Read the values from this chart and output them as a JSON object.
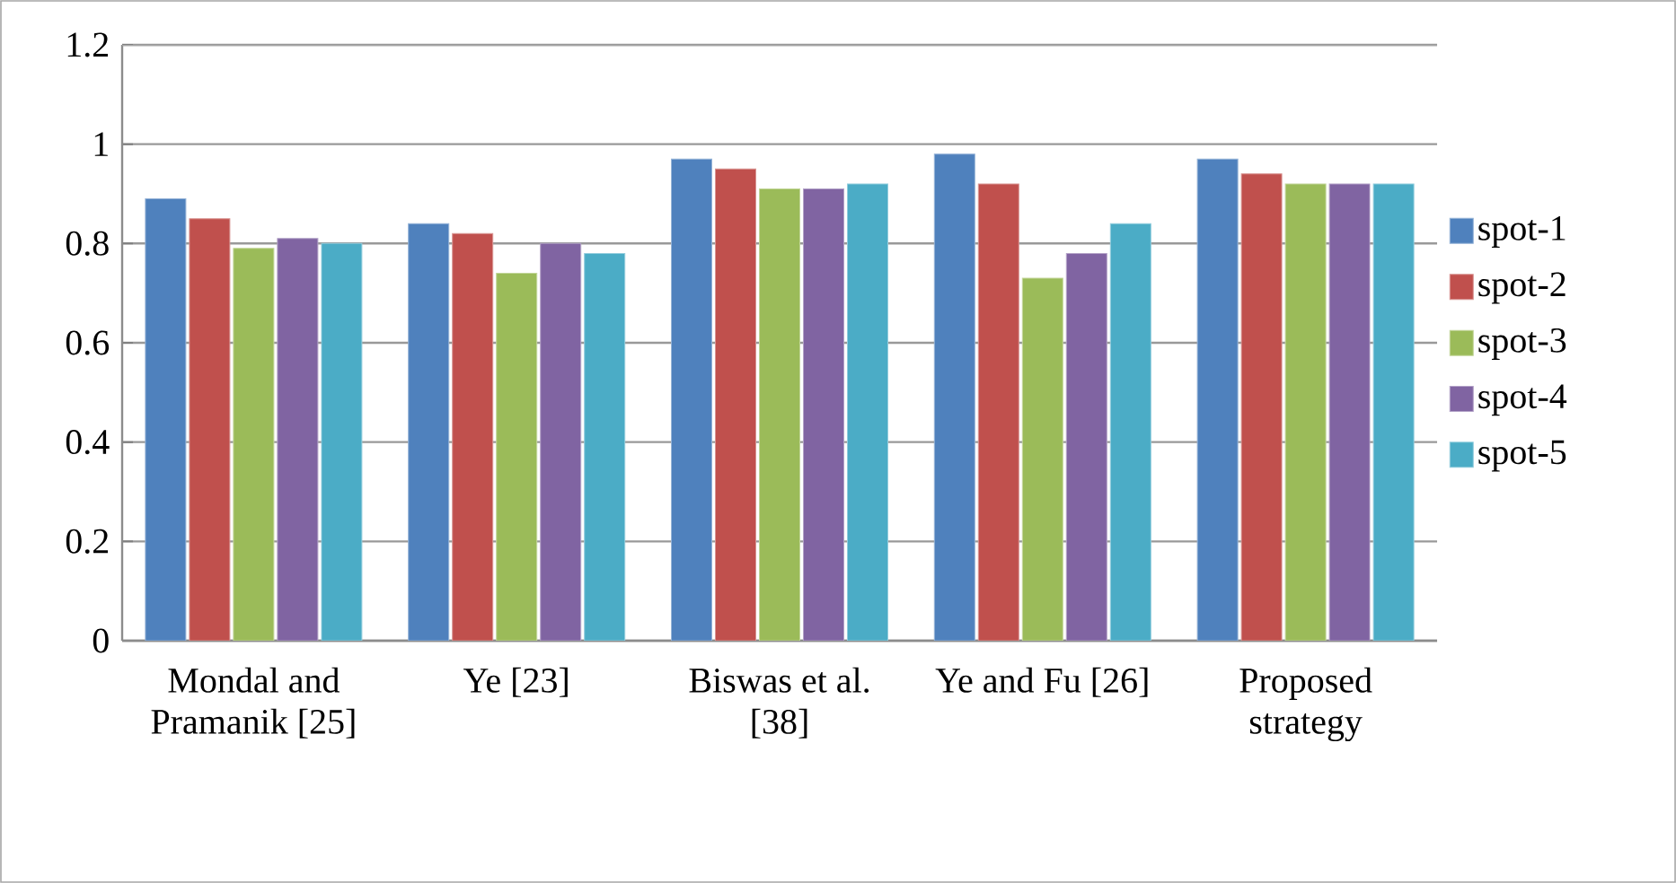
{
  "chart_data": {
    "type": "bar",
    "categories": [
      "Mondal and Pramanik [25]",
      "Ye [23]",
      "Biswas et al. [38]",
      "Ye and Fu [26]",
      "Proposed strategy"
    ],
    "series": [
      {
        "name": "spot-1",
        "color": "#4f81bd",
        "values": [
          0.89,
          0.84,
          0.97,
          0.98,
          0.97
        ]
      },
      {
        "name": "spot-2",
        "color": "#c0504d",
        "values": [
          0.85,
          0.82,
          0.95,
          0.92,
          0.94
        ]
      },
      {
        "name": "spot-3",
        "color": "#9bbb59",
        "values": [
          0.79,
          0.74,
          0.91,
          0.73,
          0.92
        ]
      },
      {
        "name": "spot-4",
        "color": "#8064a2",
        "values": [
          0.81,
          0.8,
          0.91,
          0.78,
          0.92
        ]
      },
      {
        "name": "spot-5",
        "color": "#4bacc6",
        "values": [
          0.8,
          0.78,
          0.92,
          0.84,
          0.92
        ]
      }
    ],
    "ylim": [
      0,
      1.2
    ],
    "yticks": [
      0,
      0.2,
      0.4,
      0.6,
      0.8,
      1,
      1.2
    ],
    "grid": "y",
    "legend": "right"
  }
}
